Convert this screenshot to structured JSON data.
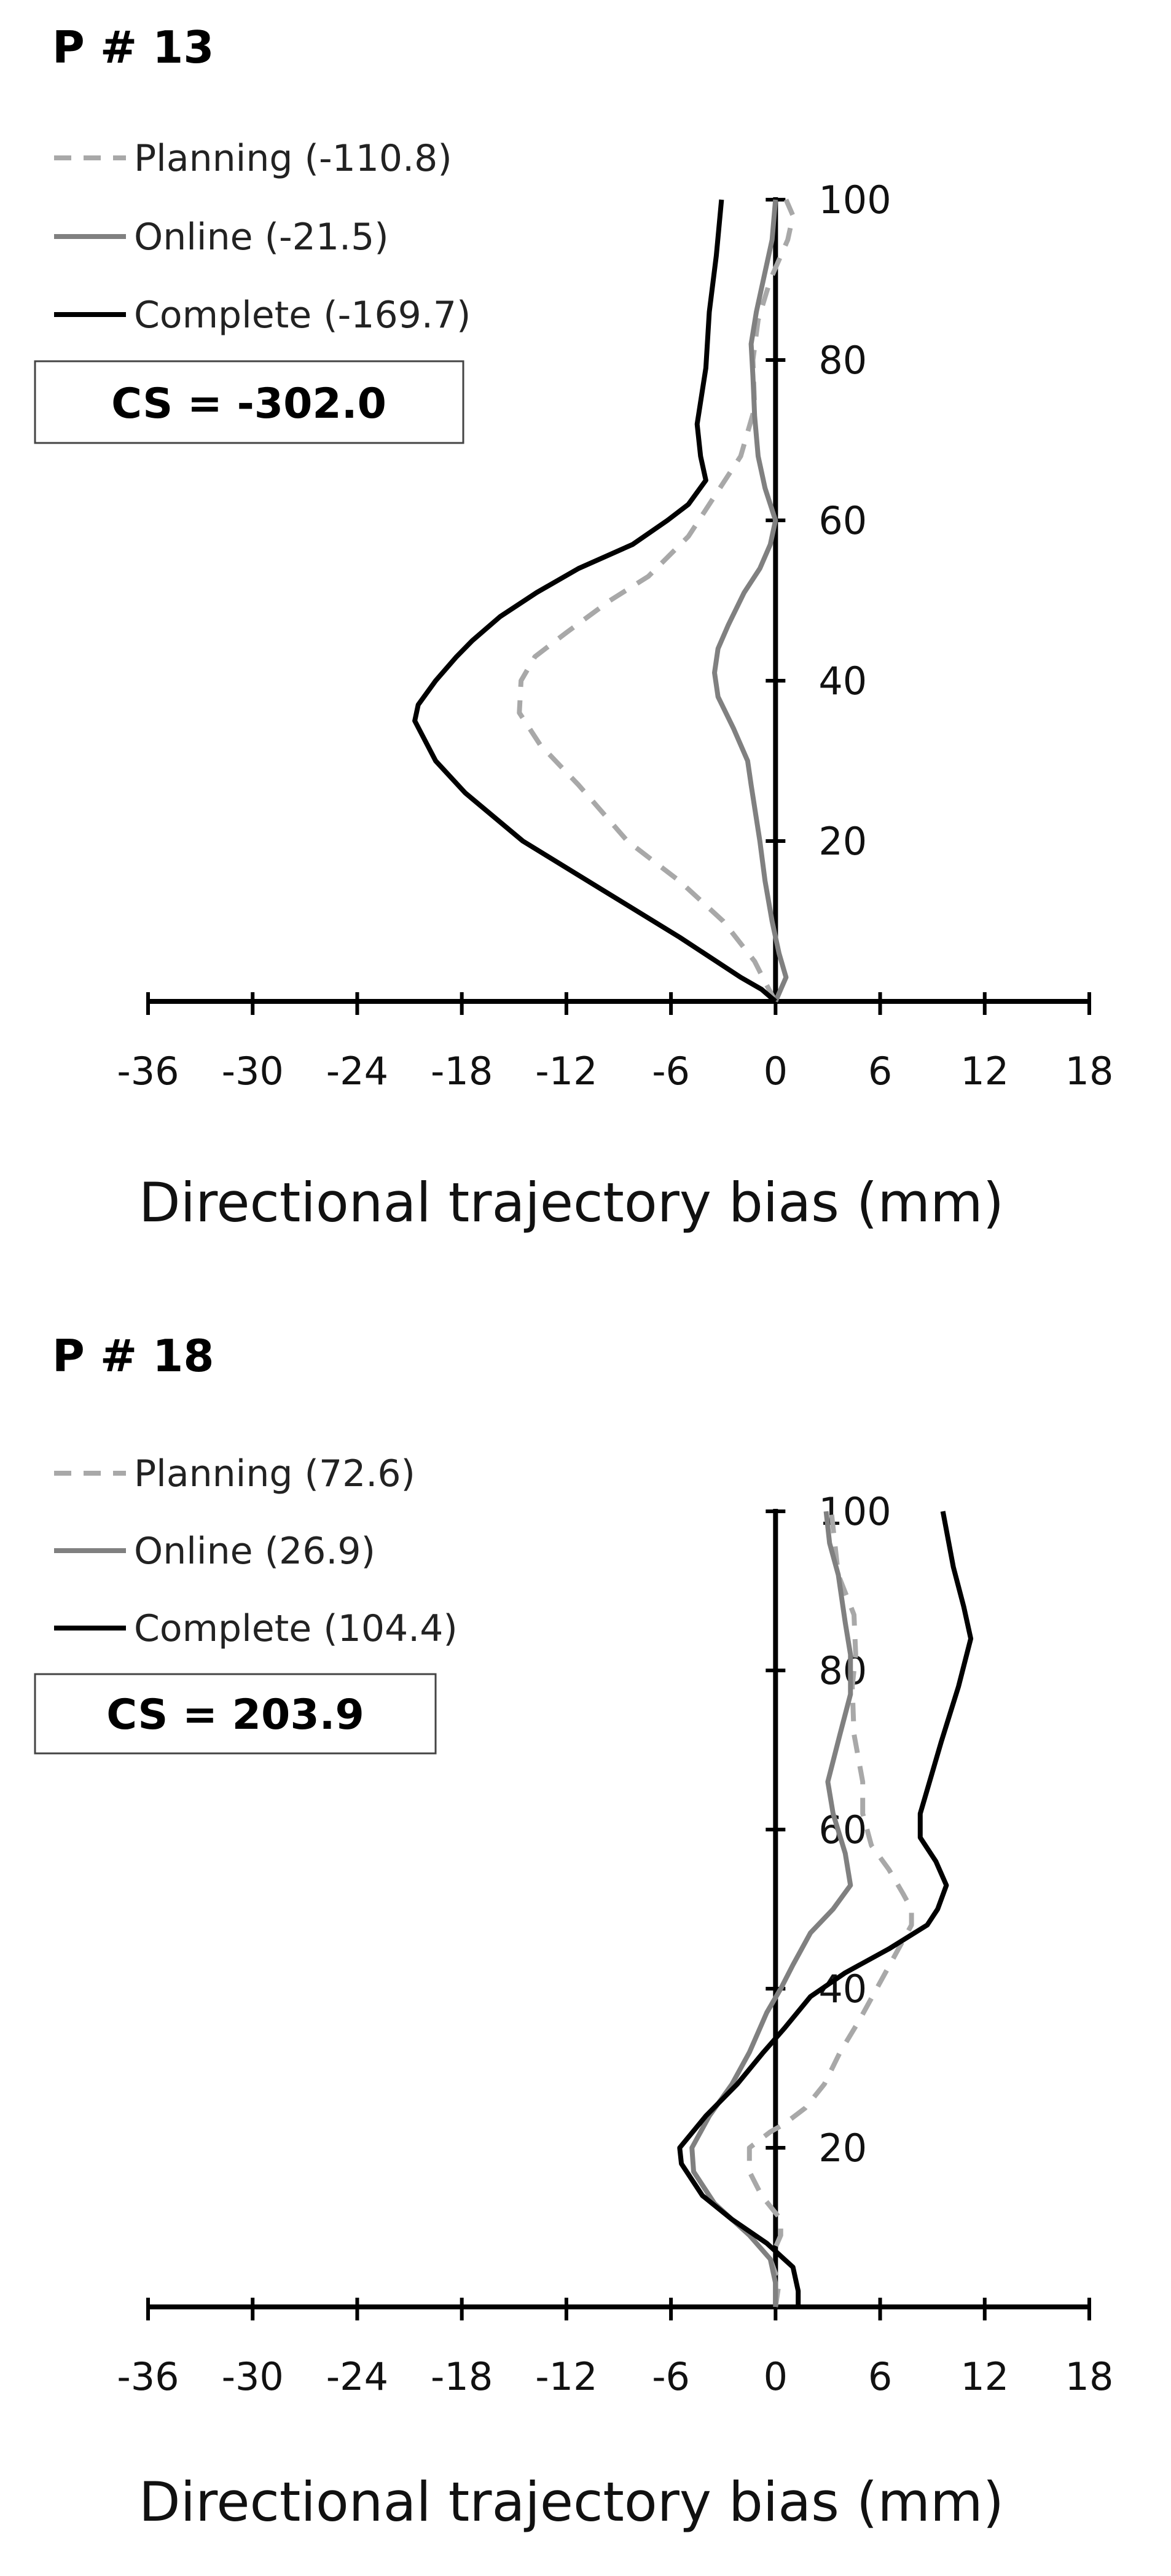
{
  "chart_data": [
    {
      "type": "line",
      "title": "P # 13",
      "xlabel": "Directional trajectory bias (mm)",
      "ylabel": "",
      "xlim": [
        -36,
        18
      ],
      "ylim": [
        0,
        100
      ],
      "x_ticks": [
        "-36",
        "-30",
        "-24",
        "-18",
        "-12",
        "-6",
        "0",
        "6",
        "12",
        "18"
      ],
      "y_ticks": [
        "20",
        "40",
        "60",
        "80",
        "100"
      ],
      "grid": false,
      "legend_position": "top-left",
      "summary_box": "CS = -302.0",
      "series": [
        {
          "name": "Planning (-110.8)",
          "color": "#a8a8a8",
          "dash": "dashed",
          "points": [
            [
              0,
              0
            ],
            [
              -0.5,
              2
            ],
            [
              -1.2,
              5
            ],
            [
              -3,
              10
            ],
            [
              -5.5,
              15
            ],
            [
              -8.5,
              20
            ],
            [
              -11.3,
              27
            ],
            [
              -13.5,
              32
            ],
            [
              -14.7,
              36
            ],
            [
              -14.6,
              40
            ],
            [
              -13.8,
              43
            ],
            [
              -12,
              46
            ],
            [
              -9.5,
              50
            ],
            [
              -7.3,
              53
            ],
            [
              -5,
              58
            ],
            [
              -3.2,
              64
            ],
            [
              -2,
              68
            ],
            [
              -1.2,
              74
            ],
            [
              -1.3,
              80
            ],
            [
              -1,
              85
            ],
            [
              -0.3,
              90
            ],
            [
              0.7,
              95
            ],
            [
              1,
              98
            ],
            [
              0.6,
              100
            ]
          ]
        },
        {
          "name": "Online (-21.5)",
          "color": "#808080",
          "dash": "solid",
          "points": [
            [
              0,
              0
            ],
            [
              0.6,
              3
            ],
            [
              0.2,
              6
            ],
            [
              -0.2,
              10
            ],
            [
              -0.6,
              15
            ],
            [
              -0.9,
              20
            ],
            [
              -1.4,
              27
            ],
            [
              -1.6,
              30
            ],
            [
              -2.4,
              34
            ],
            [
              -3.3,
              38
            ],
            [
              -3.5,
              41
            ],
            [
              -3.3,
              44
            ],
            [
              -2.7,
              47
            ],
            [
              -1.8,
              51
            ],
            [
              -0.9,
              54
            ],
            [
              -0.3,
              57
            ],
            [
              0,
              60
            ],
            [
              -0.6,
              64
            ],
            [
              -1,
              68
            ],
            [
              -1.2,
              73
            ],
            [
              -1.3,
              78
            ],
            [
              -1.4,
              82
            ],
            [
              -1.1,
              86
            ],
            [
              -0.6,
              91
            ],
            [
              -0.2,
              95
            ],
            [
              0,
              100
            ]
          ]
        },
        {
          "name": "Complete (-169.7)",
          "color": "#000000",
          "dash": "solid",
          "points": [
            [
              0,
              0
            ],
            [
              -0.8,
              1.5
            ],
            [
              -2,
              3
            ],
            [
              -5.5,
              8
            ],
            [
              -10,
              14
            ],
            [
              -14.5,
              20
            ],
            [
              -17.8,
              26
            ],
            [
              -19.5,
              30
            ],
            [
              -20.7,
              35
            ],
            [
              -20.5,
              37
            ],
            [
              -19.5,
              40
            ],
            [
              -18.3,
              43
            ],
            [
              -17.4,
              45
            ],
            [
              -15.8,
              48
            ],
            [
              -13.7,
              51
            ],
            [
              -11.3,
              54
            ],
            [
              -8.2,
              57
            ],
            [
              -6.2,
              60
            ],
            [
              -5,
              62
            ],
            [
              -4,
              65
            ],
            [
              -4.3,
              68
            ],
            [
              -4.5,
              72
            ],
            [
              -4,
              79
            ],
            [
              -3.8,
              86
            ],
            [
              -3.4,
              93
            ],
            [
              -3.1,
              100
            ]
          ]
        }
      ]
    },
    {
      "type": "line",
      "title": "P # 18",
      "xlabel": "Directional trajectory bias (mm)",
      "ylabel": "",
      "xlim": [
        -36,
        18
      ],
      "ylim": [
        0,
        100
      ],
      "x_ticks": [
        "-36",
        "-30",
        "-24",
        "-18",
        "-12",
        "-6",
        "0",
        "6",
        "12",
        "18"
      ],
      "y_ticks": [
        "20",
        "40",
        "60",
        "80",
        "100"
      ],
      "grid": false,
      "legend_position": "top-left",
      "summary_box": "CS = 203.9",
      "series": [
        {
          "name": "Planning (72.6)",
          "color": "#a8a8a8",
          "dash": "dashed",
          "points": [
            [
              0,
              0
            ],
            [
              0.2,
              3
            ],
            [
              -0.3,
              6
            ],
            [
              0.3,
              9
            ],
            [
              0.3,
              11
            ],
            [
              -0.8,
              14
            ],
            [
              -1.5,
              17
            ],
            [
              -1.5,
              20
            ],
            [
              -0.3,
              22
            ],
            [
              0.5,
              23
            ],
            [
              1.7,
              25
            ],
            [
              2.8,
              28
            ],
            [
              3.7,
              32
            ],
            [
              4.8,
              36
            ],
            [
              5.8,
              40
            ],
            [
              6.8,
              44
            ],
            [
              7.8,
              48
            ],
            [
              7.8,
              50
            ],
            [
              7.3,
              52
            ],
            [
              6.5,
              55
            ],
            [
              5.5,
              58
            ],
            [
              5,
              62
            ],
            [
              5,
              66
            ],
            [
              4.5,
              72
            ],
            [
              4.4,
              78
            ],
            [
              4.6,
              82
            ],
            [
              4.5,
              87
            ],
            [
              3.6,
              92
            ],
            [
              3.2,
              100
            ]
          ]
        },
        {
          "name": "Online (26.9)",
          "color": "#808080",
          "dash": "solid",
          "points": [
            [
              0,
              0
            ],
            [
              0,
              3
            ],
            [
              -0.3,
              6
            ],
            [
              -1.5,
              9
            ],
            [
              -3.5,
              13
            ],
            [
              -4.7,
              17
            ],
            [
              -4.8,
              20
            ],
            [
              -3.8,
              24
            ],
            [
              -2.5,
              28
            ],
            [
              -1.5,
              32
            ],
            [
              -0.5,
              37
            ],
            [
              0.3,
              40
            ],
            [
              1,
              43
            ],
            [
              2,
              47
            ],
            [
              3.3,
              50
            ],
            [
              4.3,
              53
            ],
            [
              4,
              57
            ],
            [
              3.3,
              62
            ],
            [
              3,
              66
            ],
            [
              3.7,
              72
            ],
            [
              4.3,
              77
            ],
            [
              4.3,
              82
            ],
            [
              4,
              86
            ],
            [
              3.6,
              92
            ],
            [
              3.1,
              96
            ],
            [
              2.9,
              100
            ]
          ]
        },
        {
          "name": "Complete (104.4)",
          "color": "#000000",
          "dash": "solid",
          "points": [
            [
              1.3,
              0
            ],
            [
              1.3,
              2
            ],
            [
              1,
              5
            ],
            [
              -0.5,
              8
            ],
            [
              -2.5,
              11
            ],
            [
              -4.2,
              14
            ],
            [
              -5.4,
              18
            ],
            [
              -5.5,
              20
            ],
            [
              -4,
              24
            ],
            [
              -2.2,
              28
            ],
            [
              -0.7,
              32
            ],
            [
              0.5,
              35
            ],
            [
              2,
              39
            ],
            [
              4,
              42
            ],
            [
              6.5,
              45
            ],
            [
              8.7,
              48
            ],
            [
              9.3,
              50
            ],
            [
              9.8,
              53
            ],
            [
              9.2,
              56
            ],
            [
              8.3,
              59
            ],
            [
              8.3,
              62
            ],
            [
              8.7,
              65
            ],
            [
              9.5,
              71
            ],
            [
              10.5,
              78
            ],
            [
              11.2,
              84
            ],
            [
              10.8,
              88
            ],
            [
              10.2,
              93
            ],
            [
              9.6,
              100
            ]
          ]
        }
      ]
    }
  ]
}
